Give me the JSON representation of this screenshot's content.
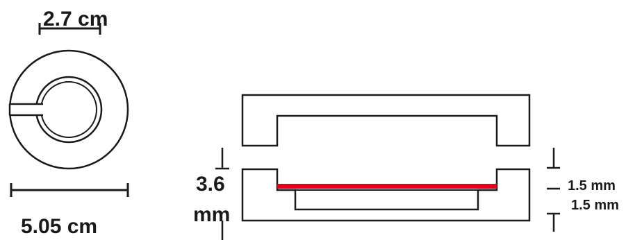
{
  "figure": {
    "dimensions": {
      "inner_diameter": "2.7 cm",
      "outer_diameter": "5.05 cm",
      "total_height": "3.6",
      "total_height_unit": "mm",
      "upper_layer": "1.5 mm",
      "lower_layer": "1.5 mm"
    },
    "colors": {
      "outline": "#1a1a1a",
      "highlight": "#e0001b",
      "background": "#ffffff"
    }
  }
}
